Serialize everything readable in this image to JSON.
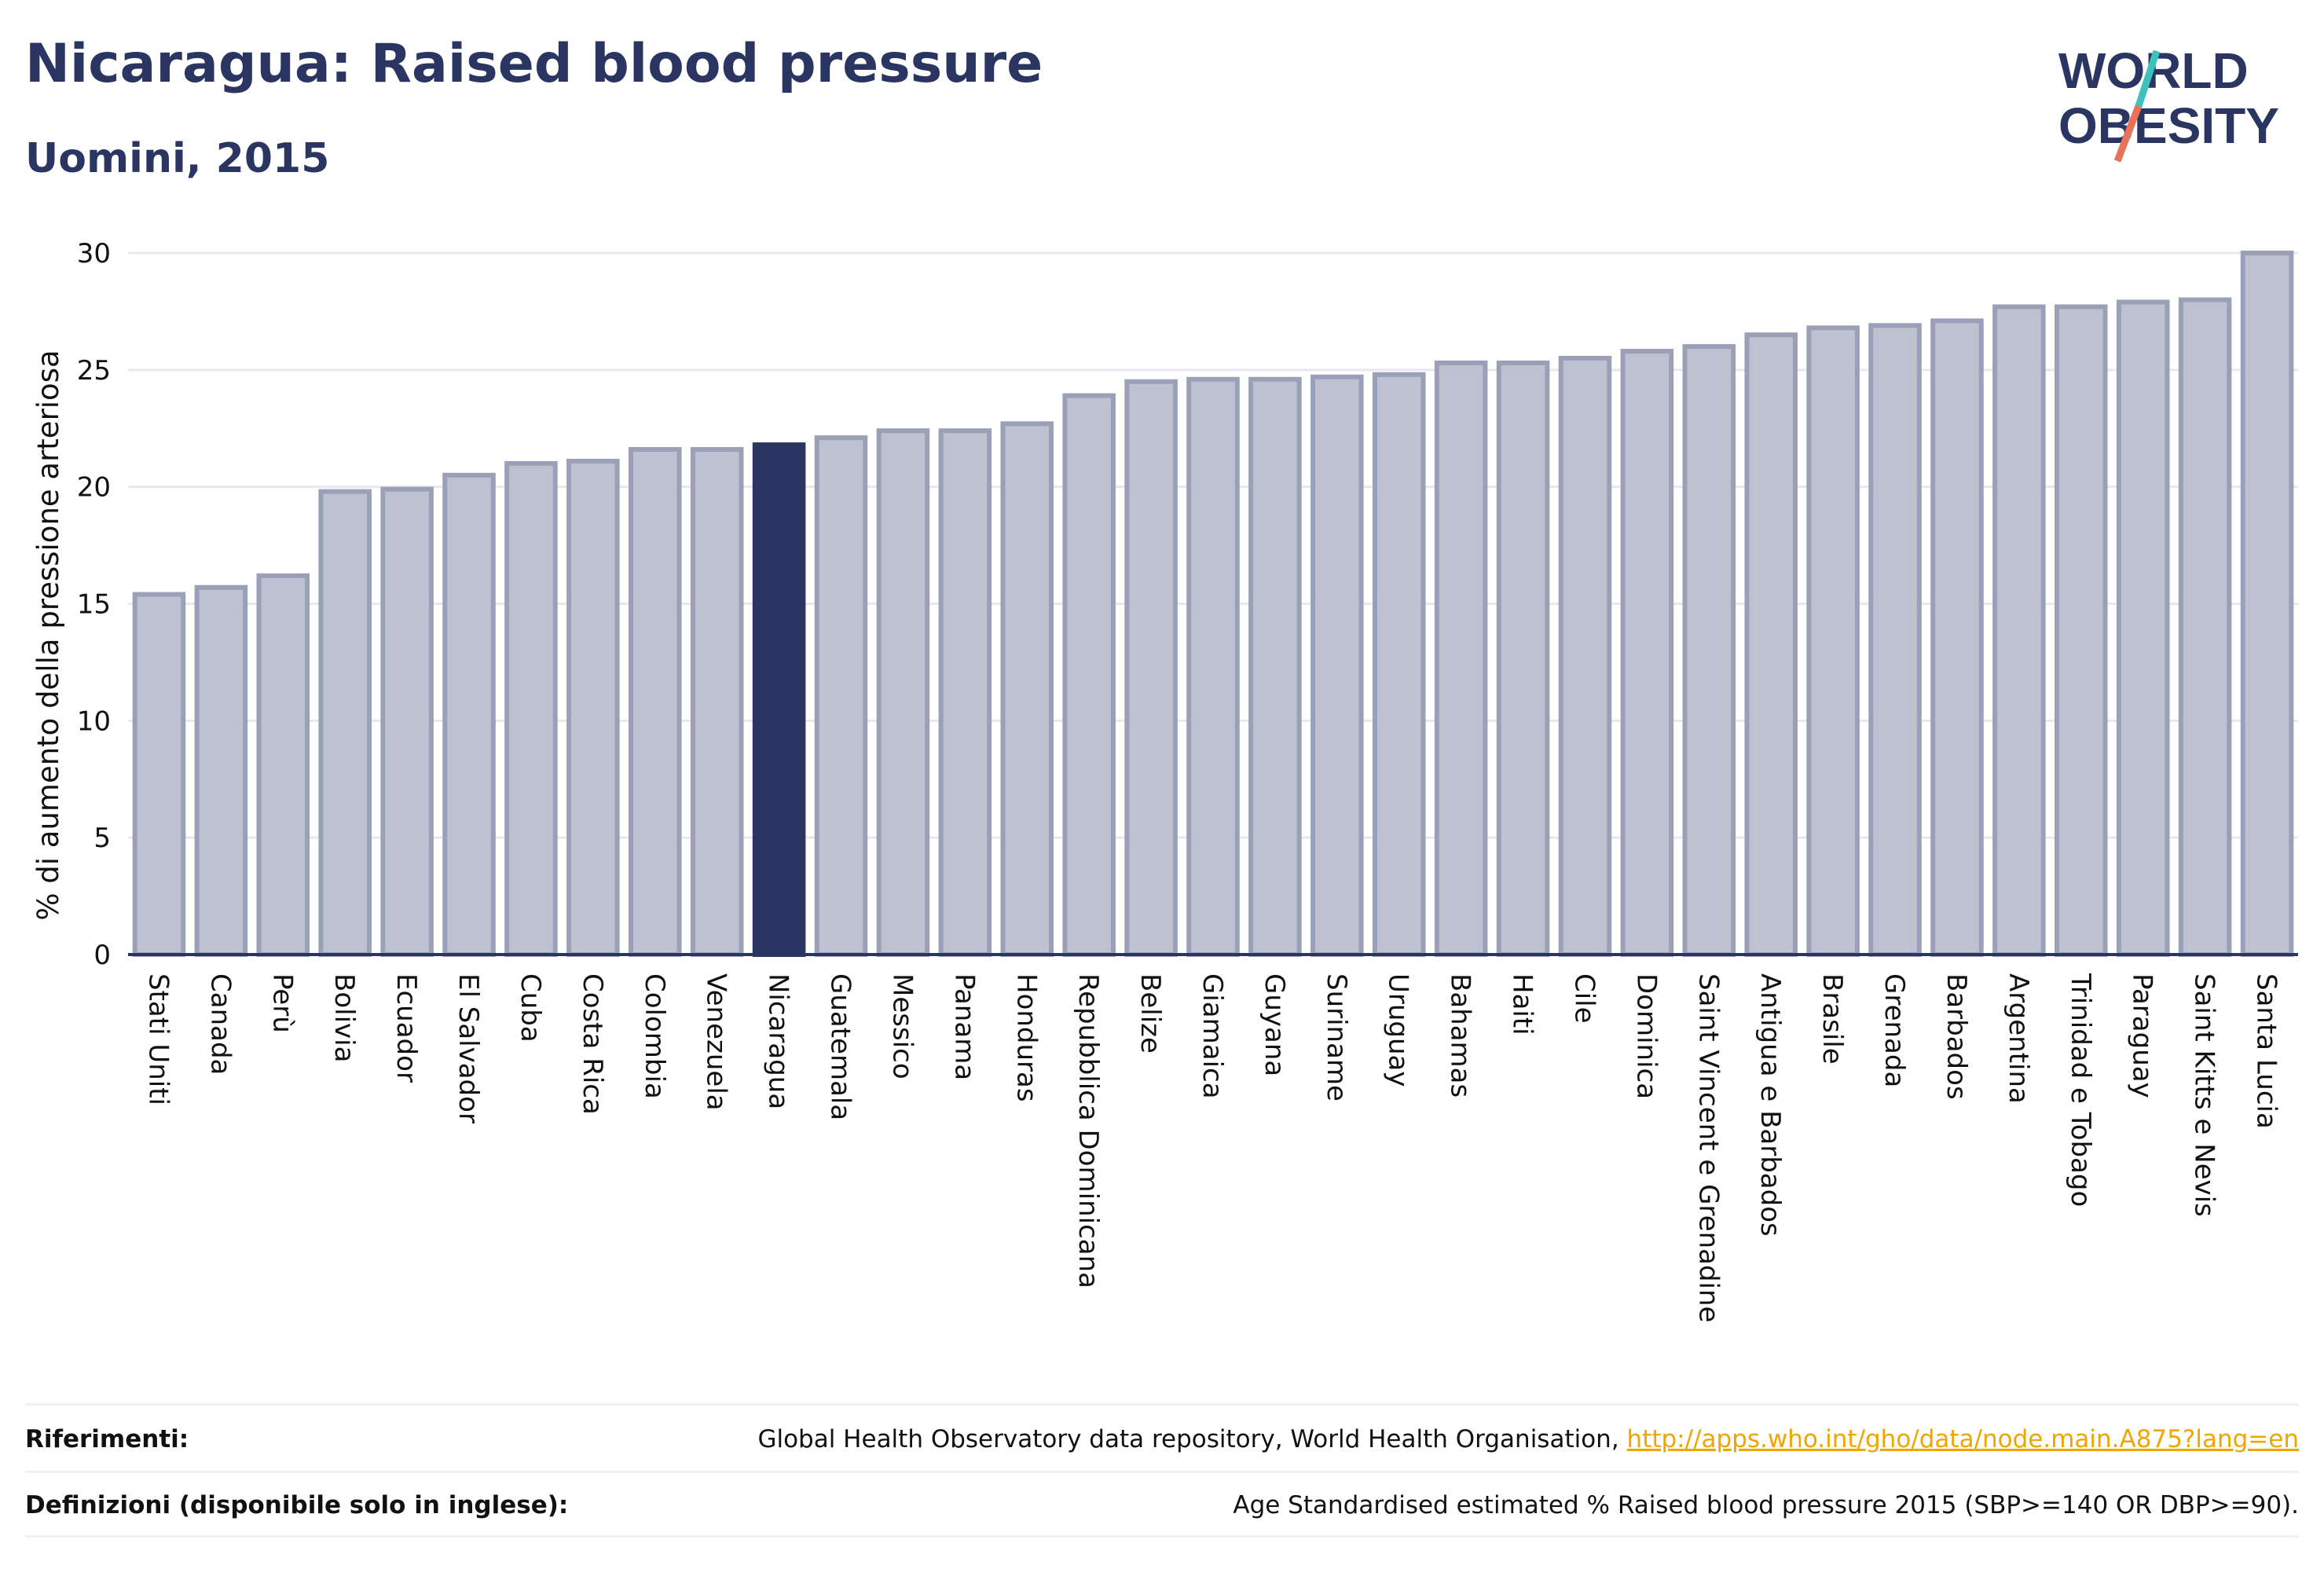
{
  "header": {
    "title": "Nicaragua: Raised blood pressure",
    "subtitle": "Uomini, 2015"
  },
  "logo": {
    "line1": "WORLD",
    "line2": "OBESITY",
    "slash_colors": [
      "#3fc1c0",
      "#e8735a"
    ]
  },
  "colors": {
    "bar": "#bec2d0",
    "bar_stroke": "#9aa0b8",
    "highlight": "#2b3561",
    "axis": "#2b3561",
    "grid": "#e6e8ef",
    "link": "#f0a500"
  },
  "chart_data": {
    "type": "bar",
    "title": "",
    "ylabel": "% di aumento della pressione arteriosa",
    "xlabel": "",
    "ylim": [
      0,
      30
    ],
    "yticks": [
      0,
      5,
      10,
      15,
      20,
      25,
      30
    ],
    "grid": true,
    "highlight": "Nicaragua",
    "categories": [
      "Stati Uniti",
      "Canada",
      "Perù",
      "Bolivia",
      "Ecuador",
      "El Salvador",
      "Cuba",
      "Costa Rica",
      "Colombia",
      "Venezuela",
      "Nicaragua",
      "Guatemala",
      "Messico",
      "Panama",
      "Honduras",
      "Repubblica Dominicana",
      "Belize",
      "Giamaica",
      "Guyana",
      "Suriname",
      "Uruguay",
      "Bahamas",
      "Haiti",
      "Cile",
      "Dominica",
      "Saint Vincent e Grenadine",
      "Antigua e Barbados",
      "Brasile",
      "Grenada",
      "Barbados",
      "Argentina",
      "Trinidad e Tobago",
      "Paraguay",
      "Saint Kitts e Nevis",
      "Santa Lucia"
    ],
    "values": [
      15.4,
      15.7,
      16.2,
      19.8,
      19.9,
      20.5,
      21.0,
      21.1,
      21.6,
      21.6,
      21.8,
      22.1,
      22.4,
      22.4,
      22.7,
      23.9,
      24.5,
      24.6,
      24.6,
      24.7,
      24.8,
      25.3,
      25.3,
      25.5,
      25.8,
      26.0,
      26.5,
      26.8,
      26.9,
      27.1,
      27.7,
      27.7,
      27.9,
      28.0,
      30.0
    ]
  },
  "footer": {
    "refs_label": "Riferimenti:",
    "refs_text": "Global Health Observatory data repository, World Health Organisation, ",
    "refs_link": "http://apps.who.int/gho/data/node.main.A875?lang=en",
    "defs_label": "Definizioni (disponibile solo in inglese):",
    "defs_text": "Age Standardised estimated % Raised blood pressure 2015 (SBP>=140 OR DBP>=90)."
  }
}
